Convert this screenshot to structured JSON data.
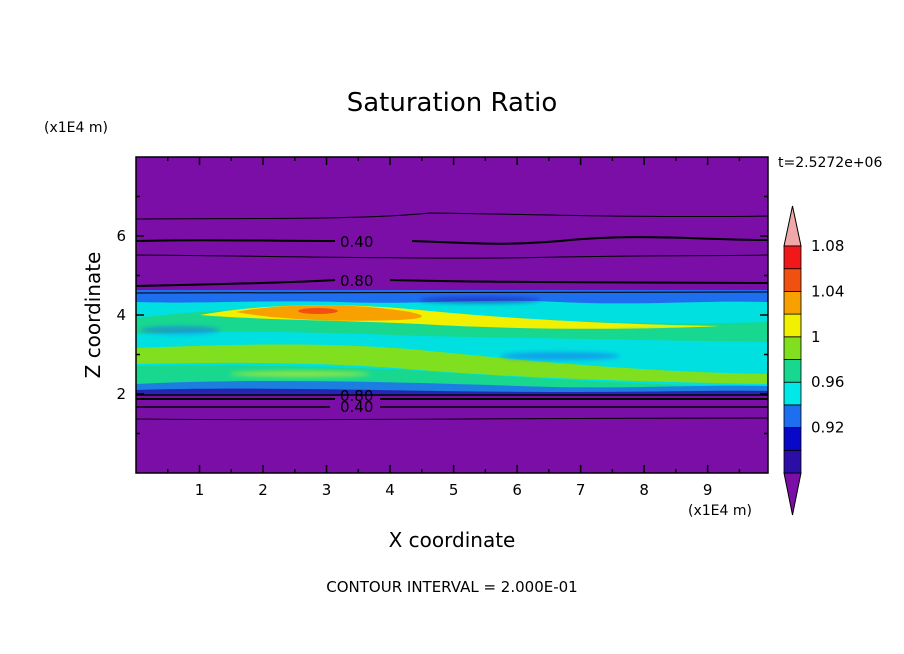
{
  "chart_data": {
    "type": "heatmap",
    "title": "Saturation Ratio",
    "xlabel": "X coordinate",
    "ylabel": "Z coordinate",
    "x_unit": "(x1E4 m)",
    "y_unit": "(x1E4 m)",
    "xlim": [
      0,
      9.95
    ],
    "ylim": [
      0,
      8
    ],
    "x_ticks": [
      "1",
      "2",
      "3",
      "4",
      "5",
      "6",
      "7",
      "8",
      "9"
    ],
    "y_ticks": [
      "2",
      "4",
      "6"
    ],
    "time_label": "t=2.5272e+06",
    "footer": "CONTOUR INTERVAL = 2.000E-01",
    "colorbar": {
      "labels": [
        "0.92",
        "0.96",
        "1",
        "1.04",
        "1.08"
      ],
      "colors": [
        "#7a0ea6",
        "#2a0ea6",
        "#0808c8",
        "#1e6ef0",
        "#00e8e8",
        "#18d890",
        "#80e020",
        "#f0f000",
        "#f8a000",
        "#f05010",
        "#f01818",
        "#f0a8a8"
      ]
    },
    "contour_labels": [
      "0.40",
      "0.80",
      "0.80",
      "0.40"
    ]
  }
}
